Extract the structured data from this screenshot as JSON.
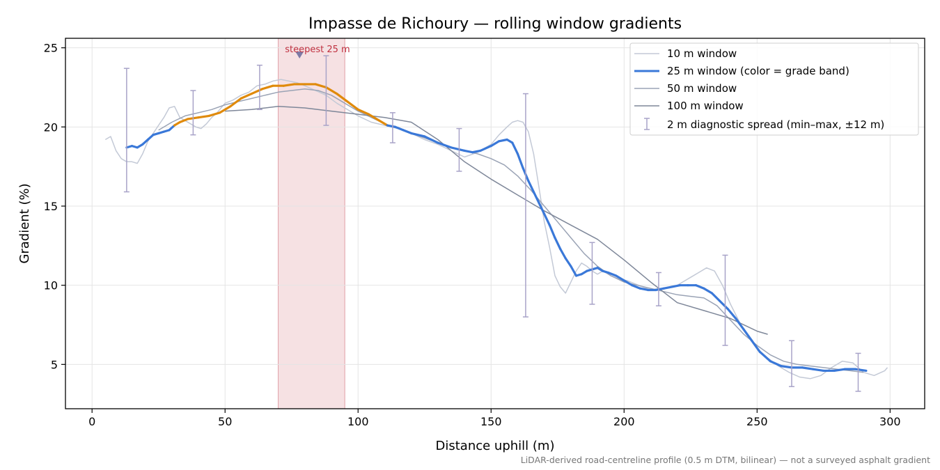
{
  "chart_data": {
    "type": "line",
    "title": "Impasse de Richoury — rolling window gradients",
    "xlabel": "Distance uphill (m)",
    "ylabel": "Gradient (%)",
    "xlim": [
      -10,
      313
    ],
    "ylim": [
      2.2,
      25.6
    ],
    "x_ticks": [
      0,
      50,
      100,
      150,
      200,
      250,
      300
    ],
    "y_ticks": [
      5,
      10,
      15,
      20,
      25
    ],
    "grid": true,
    "legend_position": "top-right",
    "footnote": "LiDAR-derived road-centreline profile (0.5 m DTM, bilinear) — not a surveyed asphalt gradient",
    "highlight": {
      "x_start": 70,
      "x_end": 95,
      "marker_x": 78,
      "label": "steepest 25 m",
      "color": "#e8b4ba"
    },
    "grade_band_colors": {
      "default": "#3a78d8",
      "steep": "#e08a0a"
    },
    "series": [
      {
        "name": "10 m window",
        "color": "#c3c9d6",
        "x": [
          5,
          7,
          9,
          11,
          13,
          15,
          17,
          19,
          21,
          23,
          25,
          27,
          29,
          31,
          33,
          35,
          37,
          39,
          41,
          43,
          45,
          47,
          50,
          53,
          56,
          59,
          62,
          65,
          68,
          71,
          74,
          77,
          80,
          84,
          88,
          92,
          96,
          100,
          105,
          110,
          115,
          120,
          125,
          130,
          135,
          140,
          145,
          150,
          153,
          156,
          158,
          160,
          162,
          164,
          166,
          168,
          170,
          172,
          174,
          176,
          178,
          180,
          182,
          184,
          186,
          188,
          190,
          192,
          195,
          198,
          201,
          204,
          207,
          210,
          213,
          216,
          219,
          222,
          225,
          228,
          231,
          234,
          237,
          240,
          243,
          246,
          250,
          254,
          258,
          262,
          266,
          270,
          274,
          278,
          282,
          286,
          290,
          294,
          298,
          299
        ],
        "y": [
          19.2,
          19.4,
          18.5,
          18.0,
          17.8,
          17.8,
          17.7,
          18.3,
          19.1,
          19.6,
          20.1,
          20.6,
          21.2,
          21.3,
          20.6,
          20.4,
          20.2,
          20.0,
          19.9,
          20.2,
          20.6,
          20.9,
          21.5,
          21.7,
          22.0,
          22.2,
          22.6,
          22.7,
          22.9,
          23.0,
          22.9,
          22.8,
          22.6,
          22.3,
          22.0,
          21.5,
          21.1,
          20.7,
          20.3,
          20.1,
          19.9,
          19.6,
          19.2,
          18.9,
          18.5,
          18.1,
          18.4,
          18.9,
          19.5,
          20.0,
          20.3,
          20.4,
          20.3,
          19.7,
          18.3,
          16.2,
          14.0,
          12.4,
          10.6,
          9.9,
          9.5,
          10.2,
          10.9,
          11.4,
          11.2,
          10.9,
          10.7,
          10.9,
          10.6,
          10.4,
          10.3,
          10.1,
          9.9,
          9.7,
          9.8,
          9.8,
          9.9,
          10.2,
          10.5,
          10.8,
          11.1,
          10.9,
          10.0,
          8.8,
          7.8,
          6.9,
          6.0,
          5.4,
          4.9,
          4.5,
          4.2,
          4.1,
          4.3,
          4.8,
          5.2,
          5.1,
          4.5,
          4.3,
          4.6,
          4.8
        ]
      },
      {
        "name": "25 m window (color = grade band)",
        "color": "#3a78d8",
        "x": [
          13,
          15,
          17,
          19,
          21,
          23,
          25,
          27,
          29,
          31,
          33,
          36,
          40,
          44,
          48,
          52,
          56,
          60,
          64,
          68,
          72,
          76,
          80,
          84,
          88,
          92,
          96,
          100,
          104,
          108,
          111,
          114,
          117,
          120,
          125,
          130,
          135,
          140,
          143,
          146,
          150,
          153,
          156,
          158,
          160,
          162,
          164,
          166,
          168,
          170,
          172,
          174,
          176,
          178,
          180,
          182,
          184,
          186,
          188,
          190,
          192,
          194,
          197,
          200,
          203,
          206,
          209,
          212,
          215,
          218,
          221,
          224,
          227,
          230,
          233,
          236,
          239,
          242,
          245,
          248,
          251,
          255,
          259,
          263,
          267,
          271,
          275,
          279,
          283,
          287,
          291
        ],
        "y": [
          18.7,
          18.8,
          18.7,
          18.9,
          19.2,
          19.5,
          19.6,
          19.7,
          19.8,
          20.1,
          20.3,
          20.5,
          20.6,
          20.7,
          20.9,
          21.3,
          21.8,
          22.1,
          22.4,
          22.6,
          22.6,
          22.7,
          22.7,
          22.7,
          22.5,
          22.1,
          21.6,
          21.1,
          20.8,
          20.4,
          20.1,
          20.0,
          19.8,
          19.6,
          19.4,
          19.0,
          18.7,
          18.5,
          18.4,
          18.5,
          18.8,
          19.1,
          19.2,
          19.0,
          18.3,
          17.4,
          16.6,
          15.9,
          15.2,
          14.5,
          13.8,
          13.0,
          12.3,
          11.7,
          11.2,
          10.6,
          10.7,
          10.9,
          11.0,
          11.1,
          10.9,
          10.8,
          10.6,
          10.3,
          10.0,
          9.8,
          9.7,
          9.7,
          9.8,
          9.9,
          10.0,
          10.0,
          10.0,
          9.8,
          9.5,
          9.0,
          8.5,
          7.9,
          7.2,
          6.5,
          5.8,
          5.2,
          4.9,
          4.8,
          4.8,
          4.7,
          4.6,
          4.6,
          4.7,
          4.7,
          4.6
        ]
      },
      {
        "name": "50 m window",
        "color": "#9aa3b5",
        "x": [
          25,
          30,
          35,
          40,
          45,
          50,
          55,
          60,
          65,
          70,
          75,
          80,
          85,
          90,
          95,
          100,
          105,
          110,
          115,
          120,
          125,
          130,
          135,
          140,
          145,
          150,
          155,
          160,
          165,
          170,
          175,
          180,
          185,
          190,
          195,
          200,
          205,
          210,
          215,
          220,
          225,
          230,
          235,
          240,
          245,
          250,
          255,
          260,
          265,
          270,
          275,
          280,
          285,
          290
        ],
        "y": [
          19.8,
          20.3,
          20.7,
          20.9,
          21.1,
          21.4,
          21.6,
          21.8,
          22.0,
          22.2,
          22.3,
          22.4,
          22.3,
          22.0,
          21.5,
          21.0,
          20.6,
          20.2,
          19.9,
          19.6,
          19.3,
          19.0,
          18.7,
          18.5,
          18.3,
          18.0,
          17.6,
          16.9,
          16.0,
          15.0,
          14.0,
          13.0,
          12.0,
          11.2,
          10.6,
          10.2,
          10.0,
          9.8,
          9.6,
          9.4,
          9.3,
          9.2,
          8.7,
          7.8,
          6.9,
          6.2,
          5.6,
          5.2,
          5.0,
          4.9,
          4.8,
          4.7,
          4.6,
          4.5
        ]
      },
      {
        "name": "100 m window",
        "color": "#7e8799",
        "x": [
          50,
          60,
          70,
          80,
          90,
          100,
          110,
          120,
          130,
          140,
          150,
          160,
          170,
          180,
          190,
          200,
          210,
          220,
          230,
          240,
          250,
          254
        ],
        "y": [
          21.0,
          21.1,
          21.3,
          21.2,
          21.0,
          20.8,
          20.6,
          20.3,
          19.2,
          17.8,
          16.7,
          15.7,
          14.7,
          13.8,
          12.9,
          11.6,
          10.2,
          8.9,
          8.4,
          7.9,
          7.1,
          6.9
        ]
      }
    ],
    "error_bars": {
      "name": "2 m diagnostic spread (min–max, ±12 m)",
      "color": "#a8a3c8",
      "points": [
        {
          "x": 13,
          "y": 18.7,
          "min": 15.9,
          "max": 23.7
        },
        {
          "x": 38,
          "y": 20.6,
          "min": 19.5,
          "max": 22.3
        },
        {
          "x": 63,
          "y": 22.3,
          "min": 21.1,
          "max": 23.9
        },
        {
          "x": 88,
          "y": 22.5,
          "min": 20.1,
          "max": 24.5
        },
        {
          "x": 113,
          "y": 20.0,
          "min": 19.0,
          "max": 20.9
        },
        {
          "x": 138,
          "y": 18.6,
          "min": 17.2,
          "max": 19.9
        },
        {
          "x": 163,
          "y": 16.8,
          "min": 8.0,
          "max": 22.1
        },
        {
          "x": 188,
          "y": 11.0,
          "min": 8.8,
          "max": 12.7
        },
        {
          "x": 213,
          "y": 9.8,
          "min": 8.7,
          "max": 10.8
        },
        {
          "x": 238,
          "y": 8.8,
          "min": 6.2,
          "max": 11.9
        },
        {
          "x": 263,
          "y": 4.8,
          "min": 3.6,
          "max": 6.5
        },
        {
          "x": 288,
          "y": 4.7,
          "min": 3.3,
          "max": 5.7
        }
      ]
    }
  }
}
